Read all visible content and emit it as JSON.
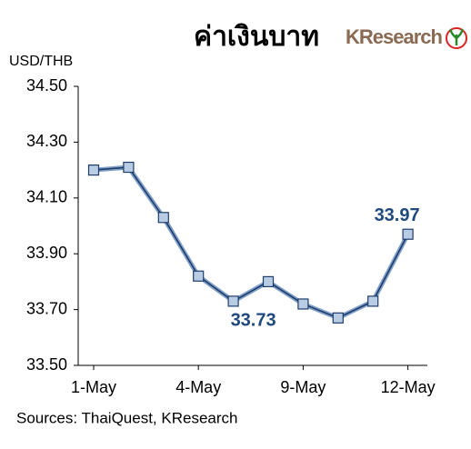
{
  "chart_data": {
    "type": "line",
    "title": "ค่าเงินบาท",
    "logo": "KResearch",
    "y_label": "USD/THB",
    "source": "Sources: ThaiQuest, KResearch",
    "categories": [
      "1-May",
      null,
      null,
      "4-May",
      null,
      null,
      "9-May",
      null,
      null,
      "12-May"
    ],
    "series": [
      {
        "name": "USD/THB",
        "color": "#1f3d6b",
        "values": [
          34.2,
          34.21,
          34.03,
          33.82,
          33.73,
          33.8,
          33.72,
          33.67,
          33.73,
          33.97
        ]
      }
    ],
    "value_labels": [
      null,
      null,
      null,
      null,
      "33.73",
      null,
      null,
      null,
      null,
      "33.97"
    ],
    "marker_color": "#b8cce4",
    "ylim": [
      33.5,
      34.5
    ],
    "yticks": [
      {
        "value": 33.5,
        "label": "33.50"
      },
      {
        "value": 33.7,
        "label": "33.70"
      },
      {
        "value": 33.9,
        "label": "33.90"
      },
      {
        "value": 34.1,
        "label": "34.10"
      },
      {
        "value": 34.3,
        "label": "34.30"
      },
      {
        "value": 34.5,
        "label": "34.50"
      }
    ],
    "grid": false
  }
}
